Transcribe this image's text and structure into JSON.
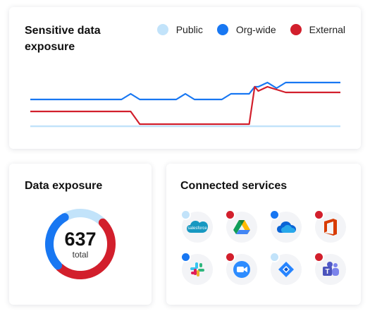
{
  "colors": {
    "public": "#c2e3fa",
    "org_wide": "#1877f2",
    "external": "#d21f2c"
  },
  "trend_card": {
    "title": "Sensitive data exposure",
    "legend": [
      {
        "key": "public",
        "label": "Public",
        "color": "#c2e3fa"
      },
      {
        "key": "org_wide",
        "label": "Org-wide",
        "color": "#1877f2"
      },
      {
        "key": "external",
        "label": "External",
        "color": "#d21f2c"
      }
    ]
  },
  "chart_data": {
    "type": "line",
    "title": "Sensitive data exposure",
    "x": [
      0,
      8,
      10,
      11,
      12,
      15,
      16,
      17,
      18,
      21,
      22,
      23,
      24,
      24.6,
      25,
      26,
      27,
      28,
      29,
      30,
      34
    ],
    "ylim": [
      0,
      100
    ],
    "grid": false,
    "legend_position": "top-right",
    "series": [
      {
        "name": "Public",
        "color": "#c2e3fa",
        "values": [
          2,
          2,
          2,
          2,
          2,
          2,
          2,
          2,
          2,
          2,
          2,
          2,
          2,
          2,
          2,
          2,
          2,
          2,
          2,
          2,
          2
        ]
      },
      {
        "name": "Org-wide",
        "color": "#1877f2",
        "values": [
          40,
          40,
          40,
          48,
          40,
          40,
          40,
          48,
          40,
          40,
          48,
          48,
          48,
          58,
          58,
          64,
          56,
          64,
          64,
          64,
          64
        ]
      },
      {
        "name": "External",
        "color": "#d21f2c",
        "values": [
          23,
          23,
          23,
          23,
          5,
          5,
          5,
          5,
          5,
          5,
          5,
          5,
          5,
          58,
          52,
          58,
          54,
          50,
          50,
          50,
          50
        ]
      }
    ]
  },
  "exposure_card": {
    "title": "Data exposure",
    "total_value": "637",
    "total_label": "total",
    "segments": [
      {
        "name": "Public",
        "fraction": 0.2,
        "color": "#c2e3fa"
      },
      {
        "name": "External",
        "fraction": 0.5,
        "color": "#d21f2c"
      },
      {
        "name": "Org-wide",
        "fraction": 0.3,
        "color": "#1877f2"
      }
    ]
  },
  "services_card": {
    "title": "Connected services",
    "services": [
      {
        "name": "Salesforce",
        "icon": "salesforce-icon",
        "text": "salesforce",
        "badge": "public"
      },
      {
        "name": "Google Drive",
        "icon": "google-drive-icon",
        "badge": "external"
      },
      {
        "name": "OneDrive",
        "icon": "onedrive-icon",
        "badge": "org_wide"
      },
      {
        "name": "Office 365",
        "icon": "office-icon",
        "badge": "external"
      },
      {
        "name": "Slack",
        "icon": "slack-icon",
        "badge": "org_wide"
      },
      {
        "name": "Zoom",
        "icon": "zoom-icon",
        "badge": "external"
      },
      {
        "name": "Jira",
        "icon": "jira-icon",
        "badge": "public"
      },
      {
        "name": "Microsoft Teams",
        "icon": "teams-icon",
        "badge": "external"
      }
    ]
  }
}
